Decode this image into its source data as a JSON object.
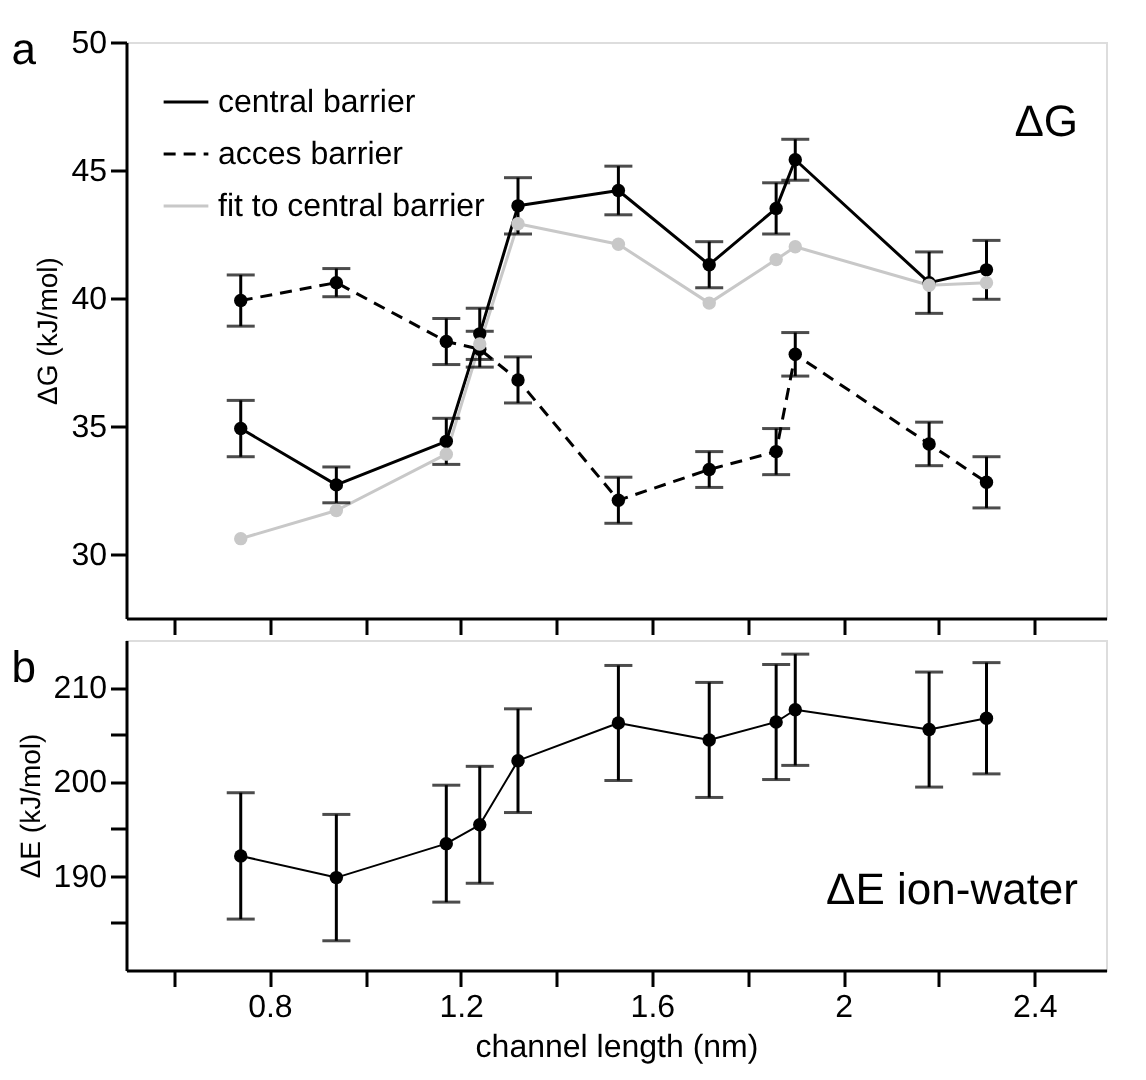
{
  "chart_data": [
    {
      "type": "line",
      "ylabel": "ΔG  (kJ/mol)",
      "annotations": [
        "a",
        "ΔG"
      ],
      "x": [
        0.74,
        0.94,
        1.17,
        1.24,
        1.32,
        1.53,
        1.72,
        1.86,
        1.9,
        2.18,
        2.3
      ],
      "xlim": [
        0.5,
        2.55
      ],
      "ylim": [
        27.5,
        50
      ],
      "xticks": [
        {
          "value": 0.6,
          "label": null
        },
        {
          "value": 0.8,
          "label": null
        },
        {
          "value": 1.0,
          "label": null
        },
        {
          "value": 1.2,
          "label": null
        },
        {
          "value": 1.4,
          "label": null
        },
        {
          "value": 1.6,
          "label": null
        },
        {
          "value": 1.8,
          "label": null
        },
        {
          "value": 2.0,
          "label": null
        },
        {
          "value": 2.2,
          "label": null
        },
        {
          "value": 2.4,
          "label": null
        }
      ],
      "yticks": [
        30,
        35,
        40,
        45,
        50
      ],
      "tick_labels": "y",
      "grid": false,
      "legend": "top left",
      "marker": "circle",
      "series": [
        {
          "name": "central barrier",
          "color": "#000000",
          "line_style": "solid",
          "values": [
            34.9,
            32.7,
            34.4,
            38.6,
            43.6,
            44.2,
            41.3,
            43.5,
            45.4,
            40.6,
            41.1
          ],
          "errors": [
            1.1,
            0.7,
            0.9,
            1.0,
            1.1,
            0.95,
            0.9,
            1.0,
            0.8,
            1.2,
            1.15
          ]
        },
        {
          "name": "acces barrier",
          "color": "#000000",
          "line_style": "dashed",
          "values": [
            39.9,
            40.6,
            38.3,
            38.0,
            36.8,
            32.1,
            33.3,
            34.0,
            37.8,
            34.3,
            32.8
          ],
          "errors": [
            1.0,
            0.55,
            0.9,
            0.7,
            0.9,
            0.9,
            0.7,
            0.9,
            0.85,
            0.85,
            1.0
          ]
        },
        {
          "name": "fit to central barrier",
          "color": "#c8c8c8",
          "line_style": "solid",
          "values": [
            30.6,
            31.7,
            33.9,
            38.2,
            42.9,
            42.1,
            39.8,
            41.5,
            42.0,
            40.5,
            40.6
          ]
        }
      ]
    },
    {
      "type": "line",
      "xlabel": "channel length (nm)",
      "ylabel": "ΔE (kJ/mol)",
      "annotations": [
        "b",
        "ΔE ion-water"
      ],
      "x": [
        0.74,
        0.94,
        1.17,
        1.24,
        1.32,
        1.53,
        1.72,
        1.86,
        1.9,
        2.18,
        2.3
      ],
      "xlim": [
        0.5,
        2.55
      ],
      "ylim": [
        180,
        215
      ],
      "xticks": [
        {
          "value": 0.6,
          "label": null
        },
        0.8,
        {
          "value": 1.0,
          "label": null
        },
        1.2,
        {
          "value": 1.4,
          "label": null
        },
        1.6,
        {
          "value": 1.8,
          "label": null
        },
        {
          "value": 2.0,
          "label": "2"
        },
        {
          "value": 2.2,
          "label": null
        },
        2.4
      ],
      "yticks": [
        {
          "value": 185,
          "label": null
        },
        190,
        {
          "value": 195,
          "label": null
        },
        200,
        {
          "value": 205,
          "label": null
        },
        210
      ],
      "grid": false,
      "marker": "circle",
      "series": [
        {
          "color": "#000000",
          "line_style": "solid",
          "values": [
            192.1,
            189.8,
            193.4,
            195.4,
            202.2,
            206.2,
            204.4,
            206.3,
            207.6,
            205.5,
            206.7
          ],
          "errors": [
            6.7,
            6.7,
            6.2,
            6.2,
            5.5,
            6.1,
            6.1,
            6.1,
            5.9,
            6.1,
            5.9
          ]
        }
      ]
    }
  ]
}
